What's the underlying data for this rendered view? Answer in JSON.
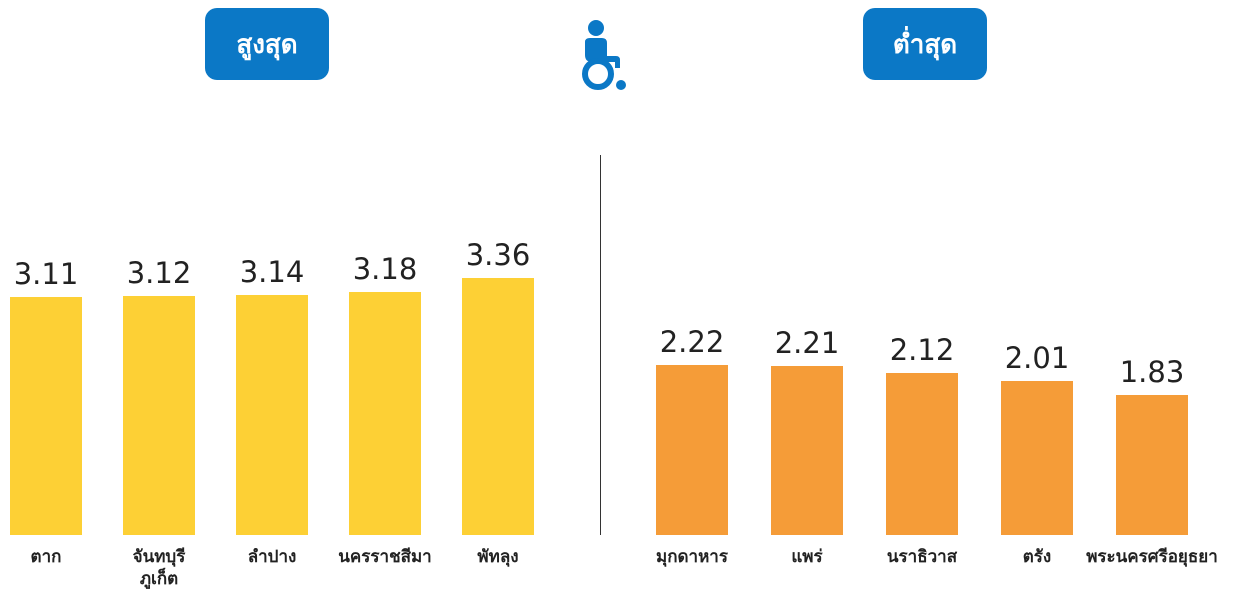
{
  "chart_data": [
    {
      "type": "bar",
      "title": "สูงสุด",
      "categories": [
        "ตาก",
        "จันทบุรี\nภูเก็ต",
        "ลำปาง",
        "นครราชสีมา",
        "พัทลุง"
      ],
      "values": [
        3.11,
        3.12,
        3.14,
        3.18,
        3.36
      ],
      "color": "#fdd035"
    },
    {
      "type": "bar",
      "title": "ต่ำสุด",
      "categories": [
        "มุกดาหาร",
        "แพร่",
        "นราธิวาส",
        "ตรัง",
        "พระนครศรีอยุธยา"
      ],
      "values": [
        2.22,
        2.21,
        2.12,
        2.01,
        1.83
      ],
      "color": "#f59c38"
    }
  ]
}
